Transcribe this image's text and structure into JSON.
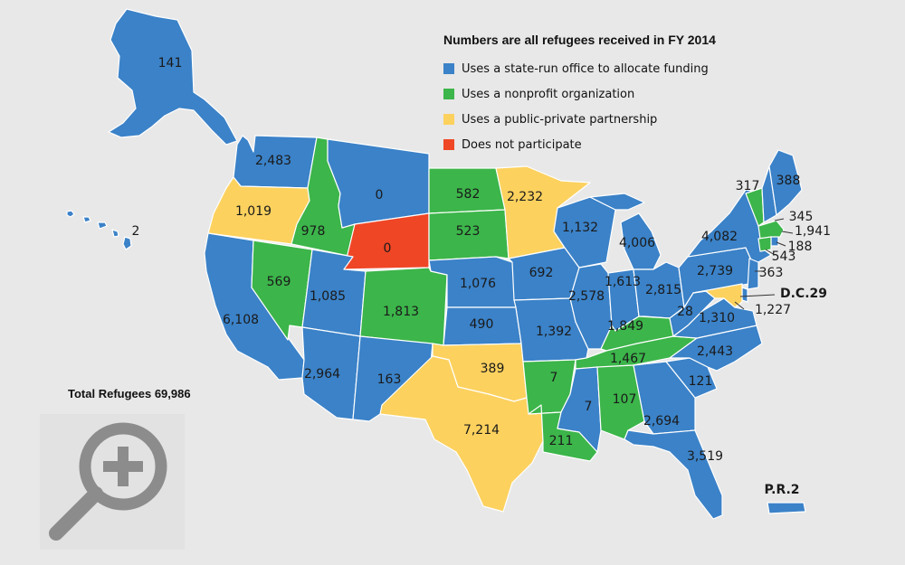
{
  "legend": {
    "title": "Numbers are all refugees received in FY 2014",
    "items": [
      {
        "label": "Uses a state-run office to allocate funding",
        "color": "#3b82c8"
      },
      {
        "label": "Uses a nonprofit organization",
        "color": "#3cb54a"
      },
      {
        "label": "Uses a public-private partnership",
        "color": "#fcd15e"
      },
      {
        "label": "Does not participate",
        "color": "#ef4626"
      }
    ]
  },
  "total_label": "Total Refugees 69,986",
  "colors": {
    "state_run": "#3b82c8",
    "nonprofit": "#3cb54a",
    "public_private": "#fcd15e",
    "none": "#ef4626",
    "background": "#e8e8e8"
  },
  "map_data": {
    "states": [
      {
        "state": "AK",
        "value": "141"
      },
      {
        "state": "HI",
        "value": "2"
      },
      {
        "state": "WA",
        "value": "2,483"
      },
      {
        "state": "OR",
        "value": "1,019"
      },
      {
        "state": "CA",
        "value": "6,108"
      },
      {
        "state": "NV",
        "value": "569"
      },
      {
        "state": "ID",
        "value": "978"
      },
      {
        "state": "MT",
        "value": "0"
      },
      {
        "state": "WY",
        "value": "0"
      },
      {
        "state": "UT",
        "value": "1,085"
      },
      {
        "state": "AZ",
        "value": "2,964"
      },
      {
        "state": "CO",
        "value": "1,813"
      },
      {
        "state": "NM",
        "value": "163"
      },
      {
        "state": "ND",
        "value": "582"
      },
      {
        "state": "SD",
        "value": "523"
      },
      {
        "state": "NE",
        "value": "1,076"
      },
      {
        "state": "KS",
        "value": "490"
      },
      {
        "state": "OK",
        "value": "389"
      },
      {
        "state": "TX",
        "value": "7,214"
      },
      {
        "state": "MN",
        "value": "2,232"
      },
      {
        "state": "IA",
        "value": "692"
      },
      {
        "state": "MO",
        "value": "1,392"
      },
      {
        "state": "AR",
        "value": "7"
      },
      {
        "state": "LA",
        "value": "211"
      },
      {
        "state": "WI",
        "value": "1,132"
      },
      {
        "state": "IL",
        "value": "2,578"
      },
      {
        "state": "MI",
        "value": "4,006"
      },
      {
        "state": "IN",
        "value": "1,613"
      },
      {
        "state": "OH",
        "value": "2,815"
      },
      {
        "state": "KY",
        "value": "1,849"
      },
      {
        "state": "TN",
        "value": "1,467"
      },
      {
        "state": "MS",
        "value": "7"
      },
      {
        "state": "AL",
        "value": "107"
      },
      {
        "state": "GA",
        "value": "2,694"
      },
      {
        "state": "FL",
        "value": "3,519"
      },
      {
        "state": "SC",
        "value": "121"
      },
      {
        "state": "NC",
        "value": "2,443"
      },
      {
        "state": "VA",
        "value": "1,310"
      },
      {
        "state": "WV",
        "value": "28"
      },
      {
        "state": "PA",
        "value": "2,739"
      },
      {
        "state": "NY",
        "value": "4,082"
      },
      {
        "state": "VT",
        "value": "317"
      },
      {
        "state": "ME",
        "value": "388"
      },
      {
        "state": "NH",
        "value": "345"
      },
      {
        "state": "MA",
        "value": "1,941"
      },
      {
        "state": "RI",
        "value": "188"
      },
      {
        "state": "CT",
        "value": "543"
      },
      {
        "state": "NJ",
        "value": "363"
      },
      {
        "state": "DC",
        "value": "D.C.29"
      },
      {
        "state": "MD",
        "value": "1,227"
      },
      {
        "state": "PR",
        "value": "P.R.2"
      }
    ]
  }
}
